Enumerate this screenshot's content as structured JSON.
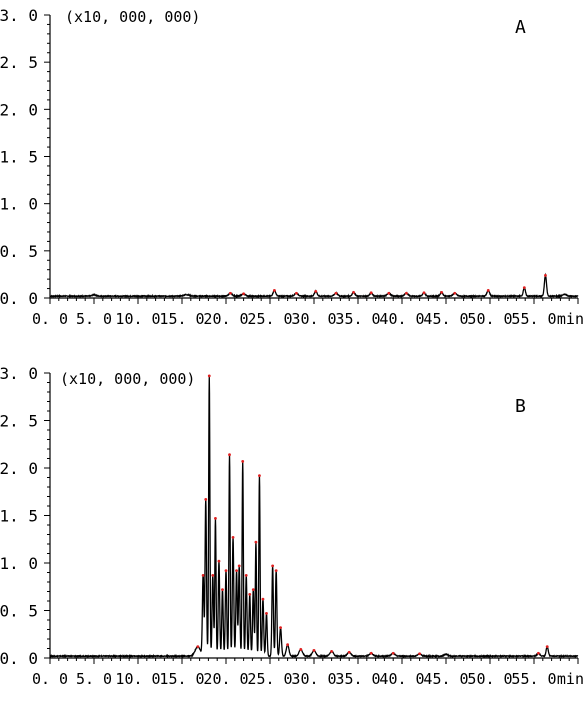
{
  "chart_data": [
    {
      "type": "line",
      "panel_label": "A",
      "scale_note": "(x10, 000, 000)",
      "x_unit": "min",
      "x_ticks": [
        "0. 0",
        "5. 0",
        "10. 0",
        "15. 0",
        "20. 0",
        "25. 0",
        "30. 0",
        "35. 0",
        "40. 0",
        "45. 0",
        "50. 0",
        "55. 0"
      ],
      "y_ticks": [
        "0. 0",
        "0. 5",
        "1. 0",
        "1. 5",
        "2. 0",
        "2. 5",
        "3. 0"
      ],
      "xlim": [
        0,
        60
      ],
      "ylim": [
        0,
        3.0
      ],
      "baseline": 0.02,
      "series": [
        {
          "color": "#000000",
          "peaks": [
            [
              5.0,
              0.015,
              0.2
            ],
            [
              15.5,
              0.015,
              0.3
            ],
            [
              20.5,
              0.03,
              0.2
            ],
            [
              22.0,
              0.025,
              0.2
            ],
            [
              25.5,
              0.06,
              0.15
            ],
            [
              28.0,
              0.03,
              0.2
            ],
            [
              30.2,
              0.05,
              0.15
            ],
            [
              32.5,
              0.03,
              0.2
            ],
            [
              34.5,
              0.04,
              0.15
            ],
            [
              36.5,
              0.035,
              0.15
            ],
            [
              38.5,
              0.03,
              0.2
            ],
            [
              40.5,
              0.03,
              0.2
            ],
            [
              42.5,
              0.035,
              0.15
            ],
            [
              44.5,
              0.04,
              0.15
            ],
            [
              46.0,
              0.03,
              0.2
            ],
            [
              49.8,
              0.06,
              0.15
            ],
            [
              53.9,
              0.09,
              0.12
            ],
            [
              56.3,
              0.22,
              0.12
            ],
            [
              58.5,
              0.02,
              0.2
            ]
          ]
        }
      ]
    },
    {
      "type": "line",
      "panel_label": "B",
      "scale_note": "(x10, 000, 000)",
      "x_unit": "min",
      "x_ticks": [
        "0. 0",
        "5. 0",
        "10. 0",
        "15. 0",
        "20. 0",
        "25. 0",
        "30. 0",
        "35. 0",
        "40. 0",
        "45. 0",
        "50. 0",
        "55. 0"
      ],
      "y_ticks": [
        "0. 0",
        "0. 5",
        "1. 0",
        "1. 5",
        "2. 0",
        "2. 5",
        "3. 0"
      ],
      "xlim": [
        0,
        60
      ],
      "ylim": [
        0,
        3.0
      ],
      "baseline": 0.02,
      "series": [
        {
          "color": "#000000",
          "peaks": [
            [
              16.8,
              0.1,
              0.3
            ],
            [
              17.4,
              0.85,
              0.08
            ],
            [
              17.7,
              1.65,
              0.08
            ],
            [
              18.1,
              2.95,
              0.07
            ],
            [
              18.5,
              0.85,
              0.08
            ],
            [
              18.8,
              1.45,
              0.07
            ],
            [
              19.2,
              1.0,
              0.08
            ],
            [
              19.6,
              0.7,
              0.08
            ],
            [
              20.0,
              0.9,
              0.08
            ],
            [
              20.4,
              2.12,
              0.07
            ],
            [
              20.8,
              1.25,
              0.08
            ],
            [
              21.2,
              0.9,
              0.08
            ],
            [
              21.5,
              0.95,
              0.08
            ],
            [
              21.9,
              2.05,
              0.07
            ],
            [
              22.3,
              0.85,
              0.08
            ],
            [
              22.7,
              0.65,
              0.08
            ],
            [
              23.1,
              0.7,
              0.08
            ],
            [
              23.4,
              1.2,
              0.07
            ],
            [
              23.8,
              1.9,
              0.07
            ],
            [
              24.2,
              0.6,
              0.08
            ],
            [
              24.6,
              0.45,
              0.08
            ],
            [
              25.3,
              0.95,
              0.08
            ],
            [
              25.7,
              0.9,
              0.08
            ],
            [
              26.2,
              0.3,
              0.1
            ],
            [
              27.0,
              0.12,
              0.15
            ],
            [
              28.5,
              0.07,
              0.2
            ],
            [
              30.0,
              0.06,
              0.2
            ],
            [
              32.0,
              0.05,
              0.2
            ],
            [
              34.0,
              0.04,
              0.2
            ],
            [
              36.5,
              0.03,
              0.2
            ],
            [
              39.0,
              0.03,
              0.2
            ],
            [
              42.0,
              0.025,
              0.2
            ],
            [
              45.0,
              0.02,
              0.2
            ],
            [
              55.5,
              0.03,
              0.15
            ],
            [
              56.5,
              0.1,
              0.12
            ]
          ]
        }
      ]
    }
  ]
}
